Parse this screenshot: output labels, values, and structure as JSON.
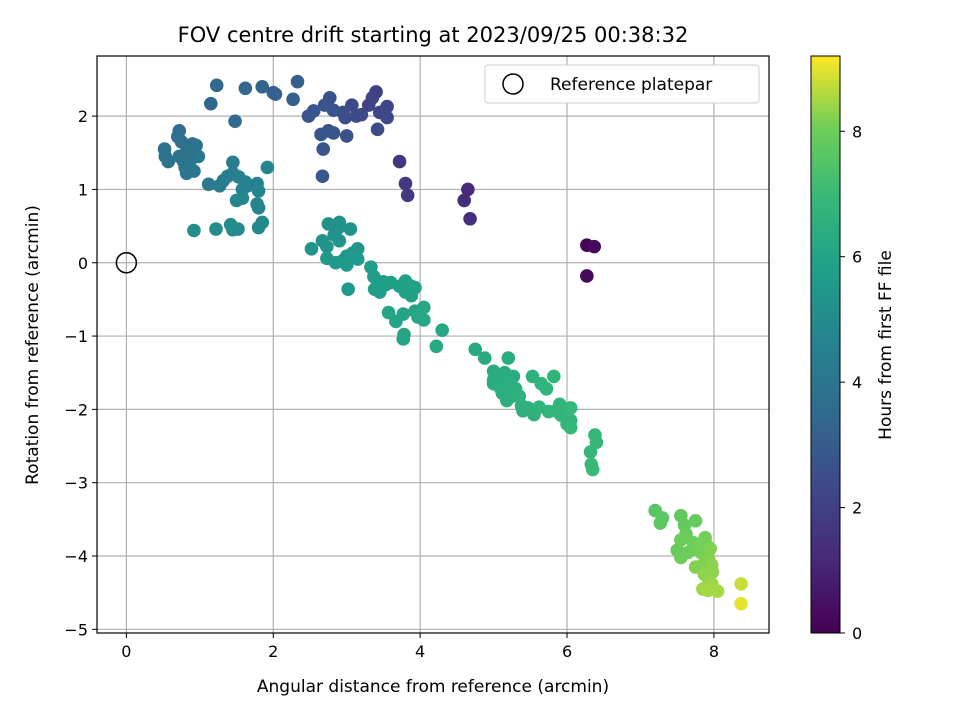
{
  "chart_data": {
    "type": "scatter",
    "title": "FOV centre drift starting at 2023/09/25 00:38:32",
    "xlabel": "Angular distance from reference (arcmin)",
    "ylabel": "Rotation from reference (arcmin)",
    "colorbar_label": "Hours from first FF file",
    "xlim": [
      -0.4,
      8.75
    ],
    "ylim": [
      -5.05,
      2.82
    ],
    "clim": [
      0,
      9.2
    ],
    "colormap": "viridis",
    "x_ticks": [
      0,
      2,
      4,
      6,
      8
    ],
    "y_ticks": [
      -5,
      -4,
      -3,
      -2,
      -1,
      0,
      1,
      2
    ],
    "colorbar_ticks": [
      0,
      2,
      4,
      6,
      8
    ],
    "grid": true,
    "legend": {
      "position": "top-right",
      "entries": [
        {
          "label": "Reference platepar",
          "marker": "open-circle"
        }
      ]
    },
    "reference_point": {
      "x": 0,
      "y": 0
    },
    "points": [
      [
        6.27,
        0.24,
        0.1
      ],
      [
        6.37,
        0.22,
        0.2
      ],
      [
        6.27,
        -0.18,
        0.3
      ],
      [
        4.65,
        1.0,
        1.2
      ],
      [
        4.6,
        0.85,
        1.3
      ],
      [
        4.68,
        0.6,
        1.4
      ],
      [
        3.72,
        1.38,
        1.6
      ],
      [
        3.8,
        1.08,
        1.7
      ],
      [
        3.83,
        0.92,
        1.8
      ],
      [
        3.4,
        2.33,
        2.0
      ],
      [
        3.35,
        2.25,
        2.1
      ],
      [
        3.3,
        2.15,
        2.1
      ],
      [
        3.45,
        2.05,
        2.2
      ],
      [
        3.55,
        2.13,
        2.2
      ],
      [
        3.55,
        1.98,
        2.3
      ],
      [
        3.42,
        1.82,
        2.4
      ],
      [
        3.2,
        2.02,
        2.3
      ],
      [
        3.07,
        2.15,
        2.3
      ],
      [
        3.13,
        2.0,
        2.4
      ],
      [
        2.95,
        2.05,
        2.5
      ],
      [
        2.98,
        1.98,
        2.5
      ],
      [
        3.0,
        1.73,
        2.6
      ],
      [
        2.77,
        2.25,
        2.6
      ],
      [
        2.7,
        2.15,
        2.7
      ],
      [
        2.82,
        2.08,
        2.7
      ],
      [
        2.75,
        1.8,
        2.7
      ],
      [
        2.65,
        1.75,
        2.8
      ],
      [
        2.82,
        1.77,
        2.8
      ],
      [
        2.68,
        1.55,
        2.8
      ],
      [
        2.67,
        1.18,
        2.9
      ],
      [
        2.48,
        2.0,
        2.7
      ],
      [
        2.55,
        2.07,
        2.8
      ],
      [
        2.33,
        2.47,
        3.1
      ],
      [
        2.27,
        2.23,
        3.1
      ],
      [
        2.03,
        2.3,
        3.2
      ],
      [
        2.0,
        2.32,
        3.2
      ],
      [
        1.85,
        2.4,
        3.3
      ],
      [
        1.62,
        2.38,
        3.4
      ],
      [
        1.23,
        2.42,
        3.5
      ],
      [
        1.15,
        2.17,
        3.5
      ],
      [
        1.48,
        1.93,
        3.6
      ],
      [
        0.72,
        1.8,
        3.7
      ],
      [
        0.7,
        1.72,
        3.7
      ],
      [
        0.75,
        1.65,
        3.8
      ],
      [
        0.82,
        1.58,
        3.8
      ],
      [
        0.9,
        1.62,
        3.8
      ],
      [
        0.95,
        1.6,
        3.9
      ],
      [
        0.52,
        1.55,
        3.8
      ],
      [
        0.53,
        1.45,
        3.9
      ],
      [
        0.57,
        1.38,
        3.9
      ],
      [
        0.72,
        1.45,
        3.9
      ],
      [
        0.78,
        1.38,
        4.0
      ],
      [
        0.8,
        1.3,
        4.0
      ],
      [
        0.88,
        1.28,
        4.0
      ],
      [
        0.9,
        1.43,
        4.1
      ],
      [
        0.98,
        1.45,
        4.1
      ],
      [
        0.92,
        1.25,
        4.1
      ],
      [
        0.82,
        1.22,
        4.1
      ],
      [
        0.88,
        1.52,
        4.0
      ],
      [
        1.12,
        1.07,
        4.2
      ],
      [
        1.27,
        1.05,
        4.3
      ],
      [
        1.32,
        1.12,
        4.3
      ],
      [
        1.38,
        1.18,
        4.4
      ],
      [
        1.45,
        1.37,
        4.4
      ],
      [
        1.45,
        1.22,
        4.4
      ],
      [
        1.53,
        1.17,
        4.5
      ],
      [
        1.62,
        1.1,
        4.5
      ],
      [
        1.58,
        1.0,
        4.6
      ],
      [
        1.65,
        1.05,
        4.6
      ],
      [
        1.78,
        1.08,
        4.6
      ],
      [
        1.8,
        0.98,
        4.7
      ],
      [
        1.78,
        0.8,
        4.7
      ],
      [
        1.8,
        0.75,
        4.7
      ],
      [
        1.92,
        1.3,
        4.8
      ],
      [
        1.5,
        0.85,
        4.8
      ],
      [
        1.58,
        0.88,
        4.8
      ],
      [
        1.85,
        0.55,
        4.9
      ],
      [
        1.8,
        0.48,
        4.9
      ],
      [
        1.42,
        0.52,
        5.0
      ],
      [
        1.45,
        0.45,
        5.0
      ],
      [
        1.52,
        0.46,
        5.0
      ],
      [
        1.22,
        0.46,
        5.0
      ],
      [
        0.92,
        0.44,
        5.1
      ],
      [
        2.75,
        0.53,
        5.2
      ],
      [
        2.9,
        0.55,
        5.2
      ],
      [
        2.88,
        0.47,
        5.2
      ],
      [
        3.05,
        0.46,
        5.3
      ],
      [
        2.83,
        0.38,
        5.3
      ],
      [
        2.9,
        0.3,
        5.3
      ],
      [
        2.67,
        0.3,
        5.3
      ],
      [
        2.52,
        0.19,
        5.4
      ],
      [
        2.73,
        0.22,
        5.4
      ],
      [
        3.15,
        0.19,
        5.4
      ],
      [
        3.08,
        0.13,
        5.5
      ],
      [
        3.0,
        0.09,
        5.5
      ],
      [
        2.95,
        0.03,
        5.5
      ],
      [
        2.73,
        0.06,
        5.5
      ],
      [
        2.85,
        0.0,
        5.6
      ],
      [
        3.0,
        -0.03,
        5.6
      ],
      [
        3.15,
        0.05,
        5.6
      ],
      [
        3.02,
        -0.36,
        5.6
      ],
      [
        3.33,
        -0.06,
        5.7
      ],
      [
        3.37,
        -0.19,
        5.7
      ],
      [
        3.5,
        -0.26,
        5.7
      ],
      [
        3.38,
        -0.36,
        5.8
      ],
      [
        3.45,
        -0.4,
        5.8
      ],
      [
        3.53,
        -0.3,
        5.8
      ],
      [
        3.6,
        -0.27,
        5.8
      ],
      [
        3.72,
        -0.32,
        5.8
      ],
      [
        3.8,
        -0.25,
        5.9
      ],
      [
        3.88,
        -0.32,
        5.9
      ],
      [
        3.8,
        -0.4,
        5.9
      ],
      [
        3.93,
        -0.34,
        5.9
      ],
      [
        3.88,
        -0.45,
        5.9
      ],
      [
        3.57,
        -0.68,
        6.0
      ],
      [
        3.67,
        -0.8,
        6.0
      ],
      [
        3.77,
        -0.7,
        6.0
      ],
      [
        3.78,
        -0.98,
        6.0
      ],
      [
        3.77,
        -1.04,
        6.0
      ],
      [
        3.93,
        -0.66,
        6.0
      ],
      [
        3.97,
        -0.74,
        6.1
      ],
      [
        4.05,
        -0.61,
        6.1
      ],
      [
        4.05,
        -0.78,
        6.1
      ],
      [
        3.98,
        -0.7,
        6.1
      ],
      [
        4.3,
        -0.92,
        6.1
      ],
      [
        4.22,
        -1.14,
        6.2
      ],
      [
        4.75,
        -1.18,
        6.2
      ],
      [
        4.88,
        -1.3,
        6.3
      ],
      [
        5.0,
        -1.48,
        6.3
      ],
      [
        5.0,
        -1.6,
        6.3
      ],
      [
        5.0,
        -1.65,
        6.3
      ],
      [
        5.1,
        -1.72,
        6.4
      ],
      [
        5.08,
        -1.6,
        6.4
      ],
      [
        5.15,
        -1.5,
        6.4
      ],
      [
        5.2,
        -1.3,
        6.4
      ],
      [
        5.27,
        -1.55,
        6.4
      ],
      [
        5.22,
        -1.65,
        6.5
      ],
      [
        5.17,
        -1.72,
        6.5
      ],
      [
        5.12,
        -1.78,
        6.5
      ],
      [
        5.18,
        -1.88,
        6.5
      ],
      [
        5.25,
        -1.82,
        6.5
      ],
      [
        5.3,
        -1.72,
        6.5
      ],
      [
        5.35,
        -1.82,
        6.6
      ],
      [
        5.38,
        -1.95,
        6.6
      ],
      [
        5.4,
        -2.02,
        6.6
      ],
      [
        5.47,
        -1.98,
        6.6
      ],
      [
        5.53,
        -1.55,
        6.6
      ],
      [
        5.55,
        -2.07,
        6.6
      ],
      [
        5.62,
        -1.97,
        6.7
      ],
      [
        5.65,
        -1.65,
        6.7
      ],
      [
        5.72,
        -1.72,
        6.7
      ],
      [
        5.75,
        -2.03,
        6.7
      ],
      [
        5.82,
        -1.55,
        6.7
      ],
      [
        5.85,
        -2.02,
        6.8
      ],
      [
        5.92,
        -2.08,
        6.8
      ],
      [
        5.9,
        -1.93,
        6.8
      ],
      [
        5.97,
        -2.08,
        6.8
      ],
      [
        6.0,
        -2.2,
        6.8
      ],
      [
        6.05,
        -2.15,
        6.8
      ],
      [
        6.05,
        -2.25,
        6.9
      ],
      [
        6.05,
        -1.98,
        6.9
      ],
      [
        6.32,
        -2.58,
        6.9
      ],
      [
        6.38,
        -2.35,
        6.9
      ],
      [
        6.4,
        -2.45,
        6.9
      ],
      [
        6.33,
        -2.75,
        7.0
      ],
      [
        6.35,
        -2.82,
        7.0
      ],
      [
        7.2,
        -3.38,
        7.6
      ],
      [
        7.3,
        -3.48,
        7.7
      ],
      [
        7.27,
        -3.55,
        7.7
      ],
      [
        7.55,
        -3.45,
        7.8
      ],
      [
        7.6,
        -3.58,
        7.8
      ],
      [
        7.75,
        -3.52,
        7.9
      ],
      [
        7.62,
        -3.7,
        7.9
      ],
      [
        7.5,
        -3.92,
        7.9
      ],
      [
        7.55,
        -3.78,
        8.0
      ],
      [
        7.55,
        -4.02,
        8.0
      ],
      [
        7.65,
        -3.95,
        8.0
      ],
      [
        7.72,
        -3.82,
        8.0
      ],
      [
        7.8,
        -3.87,
        8.1
      ],
      [
        7.82,
        -3.95,
        8.1
      ],
      [
        7.88,
        -3.75,
        8.1
      ],
      [
        7.9,
        -3.85,
        8.1
      ],
      [
        7.95,
        -3.9,
        8.2
      ],
      [
        7.75,
        -4.15,
        8.2
      ],
      [
        7.85,
        -4.12,
        8.2
      ],
      [
        7.93,
        -4.05,
        8.2
      ],
      [
        7.97,
        -4.12,
        8.3
      ],
      [
        7.87,
        -4.25,
        8.3
      ],
      [
        7.92,
        -4.3,
        8.3
      ],
      [
        7.98,
        -4.22,
        8.3
      ],
      [
        7.97,
        -4.38,
        8.4
      ],
      [
        7.85,
        -4.45,
        8.4
      ],
      [
        7.92,
        -4.47,
        8.5
      ],
      [
        8.05,
        -4.48,
        8.5
      ],
      [
        8.37,
        -4.38,
        8.8
      ],
      [
        8.37,
        -4.65,
        9.0
      ]
    ]
  }
}
